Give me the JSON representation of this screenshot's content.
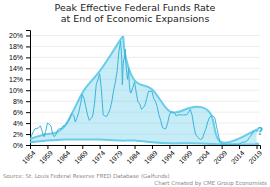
{
  "chart_data": {
    "type": "line",
    "title": "Peak Effective Federal Funds Rate\nat End of Economic Expansions",
    "source": [
      "Source: St. Louis Federal Reserve FRED Database (Galfunds)",
      "Chart Created by CME Group Economists"
    ],
    "xlim": [
      1954,
      2020
    ],
    "xticks": [
      1954,
      1959,
      1964,
      1969,
      1974,
      1979,
      1984,
      1989,
      1994,
      1999,
      2004,
      2009,
      2014,
      2019
    ],
    "ylim": [
      0,
      21
    ],
    "yticks": [
      {
        "value": 0,
        "label": "0%"
      },
      {
        "value": 2,
        "label": "2%"
      },
      {
        "value": 4,
        "label": "4%"
      },
      {
        "value": 6,
        "label": "6%"
      },
      {
        "value": 8,
        "label": "8%"
      },
      {
        "value": 10,
        "label": "10%"
      },
      {
        "value": 12,
        "label": "12%"
      },
      {
        "value": 14,
        "label": "14%"
      },
      {
        "value": 16,
        "label": "16%"
      },
      {
        "value": 18,
        "label": "18%"
      },
      {
        "value": 20,
        "label": "20%"
      }
    ],
    "grid": true,
    "series": [
      {
        "type": "area",
        "color": "#5bc8e8",
        "x": [
          1954,
          1959,
          1964,
          1969,
          1974,
          1980,
          1981,
          1984,
          1989,
          1994,
          2000,
          2006,
          2009,
          2018,
          2019
        ],
        "upper": [
          1.1,
          2.0,
          3.5,
          9.5,
          13.5,
          19.3,
          17.8,
          11.8,
          10.2,
          6.2,
          6.8,
          5.5,
          0.5,
          2.5,
          2.5
        ],
        "lower": [
          0.5,
          0.8,
          1.0,
          1.0,
          1.0,
          0.8,
          0.8,
          0.8,
          0.5,
          0.3,
          0.3,
          0.2,
          0.1,
          0.1,
          0.3
        ]
      },
      {
        "type": "line",
        "color": "#3ab5d8",
        "x": [
          1954.0,
          1954.5,
          1955.0,
          1955.5,
          1956.0,
          1956.5,
          1957.0,
          1957.5,
          1958.0,
          1958.5,
          1959.0,
          1959.5,
          1960.0,
          1960.5,
          1961.0,
          1961.5,
          1962.0,
          1962.5,
          1963.0,
          1963.5,
          1964.0,
          1964.5,
          1965.0,
          1965.5,
          1966.0,
          1966.5,
          1967.0,
          1967.5,
          1968.0,
          1968.5,
          1969.0,
          1969.5,
          1970.0,
          1970.5,
          1971.0,
          1971.5,
          1972.0,
          1972.5,
          1973.0,
          1973.5,
          1974.0,
          1974.5,
          1975.0,
          1975.5,
          1976.0,
          1976.5,
          1977.0,
          1977.5,
          1978.0,
          1978.5,
          1979.0,
          1979.5,
          1980.0,
          1980.3,
          1980.5,
          1980.8,
          1981.0,
          1981.3,
          1981.5,
          1981.8,
          1982.0,
          1982.3,
          1982.5,
          1982.8,
          1983.0,
          1983.5,
          1984.0,
          1984.5,
          1985.0,
          1985.5,
          1986.0,
          1986.5,
          1987.0,
          1987.5,
          1988.0,
          1988.5,
          1989.0,
          1989.5,
          1990.0,
          1990.5,
          1991.0,
          1991.5,
          1992.0,
          1992.5,
          1993.0,
          1993.5,
          1994.0,
          1994.5,
          1995.0,
          1995.5,
          1996.0,
          1996.5,
          1997.0,
          1997.5,
          1998.0,
          1998.5,
          1999.0,
          1999.5,
          2000.0,
          2000.5,
          2001.0,
          2001.5,
          2002.0,
          2002.5,
          2003.0,
          2003.5,
          2004.0,
          2004.5,
          2005.0,
          2005.5,
          2006.0,
          2006.5,
          2007.0,
          2007.5,
          2008.0,
          2008.5,
          2009.0,
          2010.0,
          2011.0,
          2012.0,
          2013.0,
          2014.0,
          2015.0,
          2015.5,
          2016.0,
          2016.5,
          2017.0,
          2017.5,
          2018.0,
          2018.5
        ],
        "values": [
          1.0,
          1.8,
          2.5,
          3.0,
          3.0,
          3.2,
          3.5,
          2.5,
          1.5,
          2.5,
          4.0,
          3.8,
          3.5,
          2.0,
          1.5,
          2.0,
          2.8,
          3.0,
          3.0,
          3.5,
          3.5,
          3.8,
          4.3,
          5.0,
          5.8,
          5.5,
          4.2,
          5.0,
          6.0,
          7.5,
          9.2,
          8.5,
          7.0,
          5.5,
          4.5,
          4.8,
          5.3,
          7.5,
          11.0,
          12.0,
          13.0,
          10.0,
          5.5,
          5.3,
          5.2,
          5.8,
          6.6,
          8.0,
          10.0,
          11.5,
          13.5,
          17.0,
          19.0,
          16.0,
          11.0,
          15.5,
          15.5,
          17.5,
          15.0,
          13.0,
          12.0,
          14.0,
          11.0,
          9.5,
          9.5,
          10.5,
          11.5,
          9.5,
          7.8,
          7.5,
          6.5,
          6.8,
          7.3,
          8.5,
          9.8,
          9.8,
          9.8,
          8.5,
          8.0,
          7.0,
          5.5,
          4.5,
          3.2,
          3.0,
          3.0,
          4.0,
          5.5,
          6.0,
          6.0,
          5.8,
          5.3,
          5.5,
          5.5,
          5.5,
          5.5,
          5.5,
          5.5,
          6.0,
          6.5,
          5.5,
          3.5,
          2.0,
          1.5,
          1.2,
          1.0,
          1.2,
          2.2,
          3.0,
          4.2,
          5.0,
          5.3,
          5.3,
          5.0,
          3.5,
          2.0,
          0.5,
          0.15,
          0.15,
          0.15,
          0.15,
          0.15,
          0.15,
          0.5,
          0.5,
          0.65,
          0.9,
          1.4,
          1.8,
          2.4,
          2.4
        ]
      }
    ],
    "annotations": [
      {
        "text": "?",
        "x": 2019.2,
        "y": 2.3,
        "color": "#3ab5d8"
      }
    ]
  }
}
